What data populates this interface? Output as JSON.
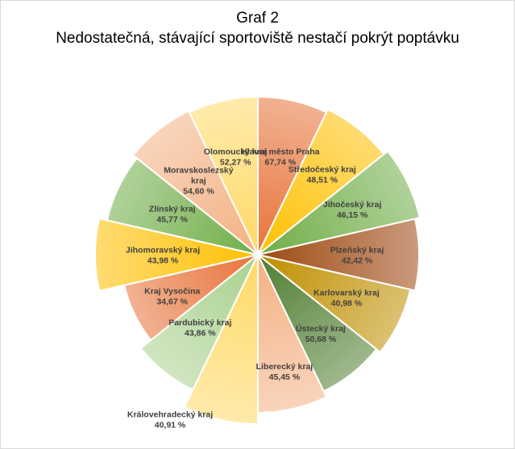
{
  "chart_data": {
    "type": "pie",
    "title": "Graf 2",
    "subtitle": "Nedostatečná, stávající sportoviště nestačí pokrýt poptávku",
    "slices": [
      {
        "label": "Hlavní město Praha",
        "value": 67.74,
        "value_text": "67,74 %",
        "color": "#E8733A"
      },
      {
        "label": "Středočeský kraj",
        "value": 48.51,
        "value_text": "48,51 %",
        "color": "#FFC000"
      },
      {
        "label": "Jihočeský kraj",
        "value": 46.15,
        "value_text": "46,15 %",
        "color": "#70AD47"
      },
      {
        "label": "Plzeňský kraj",
        "value": 42.42,
        "value_text": "42,42 %",
        "color": "#9E4A12"
      },
      {
        "label": "Karlovarský kraj",
        "value": 40.98,
        "value_text": "40,98 %",
        "color": "#BF8F00"
      },
      {
        "label": "Ústecký kraj",
        "value": 50.68,
        "value_text": "50,68 %",
        "color": "#507E32"
      },
      {
        "label": "Liberecký kraj",
        "value": 45.45,
        "value_text": "45,45 %",
        "color": "#F4B183"
      },
      {
        "label": "Královehradecký kraj",
        "value": 40.91,
        "value_text": "40,91 %",
        "color": "#FFD966"
      },
      {
        "label": "Pardubický kraj",
        "value": 43.86,
        "value_text": "43,86 %",
        "color": "#A9D18E"
      },
      {
        "label": "Kraj Vysočina",
        "value": 34.67,
        "value_text": "34,67 %",
        "color": "#E8733A"
      },
      {
        "label": "Jihomoravský kraj",
        "value": 43.98,
        "value_text": "43,98 %",
        "color": "#FFC000"
      },
      {
        "label": "Zlínský kraj",
        "value": 45.77,
        "value_text": "45,77 %",
        "color": "#70AD47"
      },
      {
        "label": "Moravskoslezský\nkraj",
        "value": 54.6,
        "value_text": "54,60 %",
        "color": "#F4B183"
      },
      {
        "label": "Olomoucký kraj",
        "value": 52.27,
        "value_text": "52,27 %",
        "color": "#FFD966"
      }
    ]
  }
}
